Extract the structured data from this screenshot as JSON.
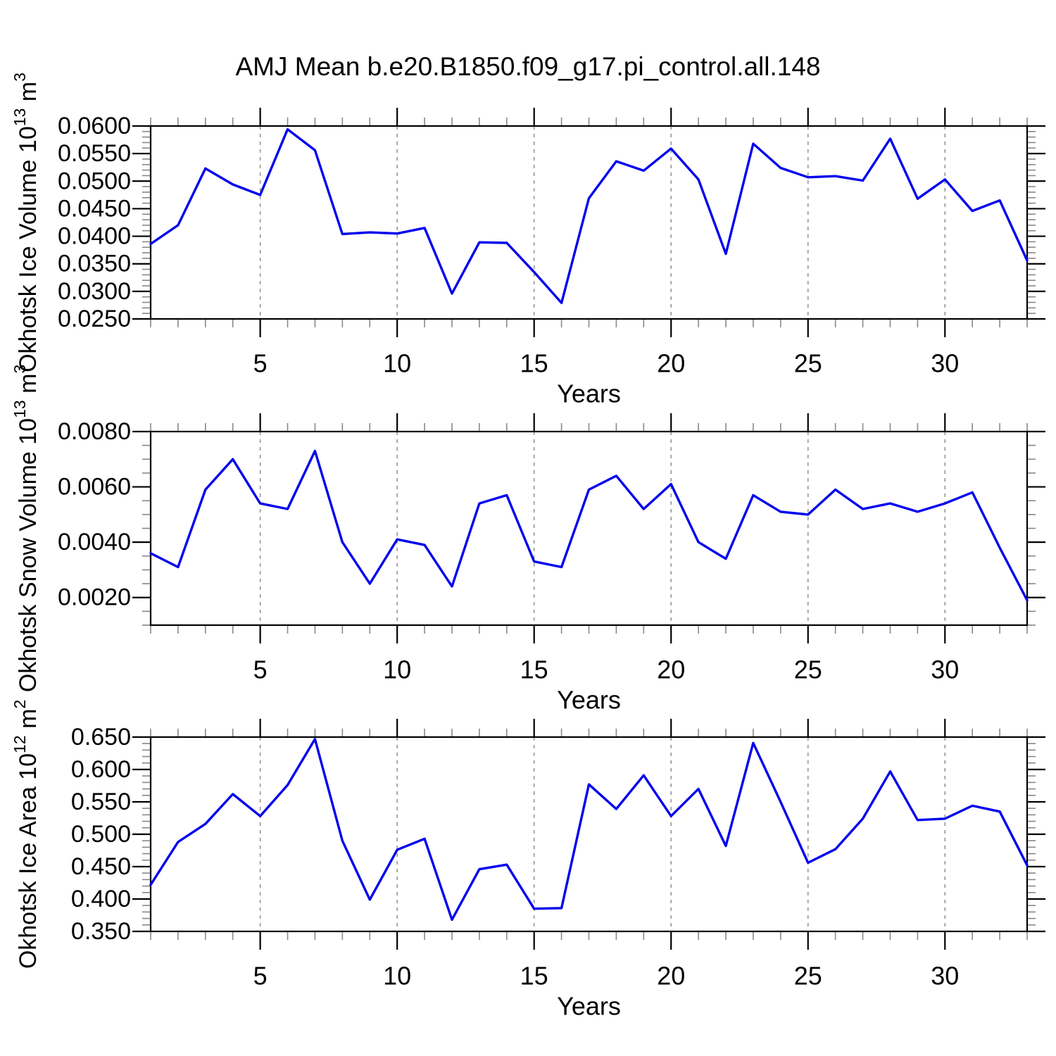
{
  "title": "AMJ Mean b.e20.B1850.f09_g17.pi_control.all.148",
  "colors": {
    "line": "#0000EE",
    "frame": "#000000",
    "major_tick": "#000000",
    "minor_tick": "#888888",
    "grid": "#969696",
    "background": "#ffffff",
    "text": "#000000"
  },
  "chart_data": [
    {
      "type": "line",
      "id": "ice-volume",
      "ylabel_text": "Okhotsk Ice Volume 10^13 m^3",
      "ylabel_parts": [
        {
          "text": "Okhotsk Ice Volume 10",
          "sup": false
        },
        {
          "text": "13",
          "sup": true
        },
        {
          "text": " m",
          "sup": false
        },
        {
          "text": "3",
          "sup": true
        }
      ],
      "xlabel": "Years",
      "x": [
        1,
        2,
        3,
        4,
        5,
        6,
        7,
        8,
        9,
        10,
        11,
        12,
        13,
        14,
        15,
        16,
        17,
        18,
        19,
        20,
        21,
        22,
        23,
        24,
        25,
        26,
        27,
        28,
        29,
        30,
        31,
        32,
        33
      ],
      "values": [
        0.0386,
        0.042,
        0.0523,
        0.0494,
        0.0475,
        0.0594,
        0.0556,
        0.0404,
        0.0407,
        0.0405,
        0.0415,
        0.0296,
        0.0389,
        0.0388,
        0.0335,
        0.0279,
        0.0469,
        0.0536,
        0.0519,
        0.0559,
        0.0503,
        0.0368,
        0.0568,
        0.0524,
        0.0507,
        0.0509,
        0.0501,
        0.0577,
        0.0468,
        0.0503,
        0.0446,
        0.0465,
        0.0356
      ],
      "xlim": [
        1,
        33
      ],
      "ylim": [
        0.025,
        0.06
      ],
      "xticks_major": [
        5,
        10,
        15,
        20,
        25,
        30
      ],
      "xtick_labels": [
        "5",
        "10",
        "15",
        "20",
        "25",
        "30"
      ],
      "xtick_minor_step": 1,
      "ytick_values": [
        0.025,
        0.03,
        0.035,
        0.04,
        0.045,
        0.05,
        0.055,
        0.06
      ],
      "ytick_labels": [
        "0.0250",
        "0.0300",
        "0.0350",
        "0.0400",
        "0.0450",
        "0.0500",
        "0.0550",
        "0.0600"
      ],
      "ytick_minor_step": 0.001,
      "grid_x": [
        5,
        10,
        15,
        20,
        25,
        30
      ],
      "grid_on": true,
      "legend": "none"
    },
    {
      "type": "line",
      "id": "snow-volume",
      "ylabel_text": "Okhotsk Snow Volume 10^13 m^3",
      "ylabel_parts": [
        {
          "text": "Okhotsk Snow Volume 10",
          "sup": false
        },
        {
          "text": "13",
          "sup": true
        },
        {
          "text": " m",
          "sup": false
        },
        {
          "text": "3",
          "sup": true
        }
      ],
      "xlabel": "Years",
      "x": [
        1,
        2,
        3,
        4,
        5,
        6,
        7,
        8,
        9,
        10,
        11,
        12,
        13,
        14,
        15,
        16,
        17,
        18,
        19,
        20,
        21,
        22,
        23,
        24,
        25,
        26,
        27,
        28,
        29,
        30,
        31,
        32,
        33
      ],
      "values": [
        0.0036,
        0.0031,
        0.0059,
        0.007,
        0.0054,
        0.0052,
        0.0073,
        0.004,
        0.0025,
        0.0041,
        0.0039,
        0.0024,
        0.0054,
        0.0057,
        0.0033,
        0.0031,
        0.0059,
        0.0064,
        0.0052,
        0.0061,
        0.004,
        0.0034,
        0.0057,
        0.0051,
        0.005,
        0.0059,
        0.0052,
        0.0054,
        0.0051,
        0.0054,
        0.0058,
        0.0038,
        0.0019
      ],
      "xlim": [
        1,
        33
      ],
      "ylim": [
        0.001,
        0.008
      ],
      "xticks_major": [
        5,
        10,
        15,
        20,
        25,
        30
      ],
      "xtick_labels": [
        "5",
        "10",
        "15",
        "20",
        "25",
        "30"
      ],
      "xtick_minor_step": 1,
      "ytick_values": [
        0.002,
        0.004,
        0.006,
        0.008
      ],
      "ytick_labels": [
        "0.0020",
        "0.0040",
        "0.0060",
        "0.0080"
      ],
      "ytick_minor_step": 0.0005,
      "grid_x": [
        5,
        10,
        15,
        20,
        25,
        30
      ],
      "grid_on": true,
      "legend": "none"
    },
    {
      "type": "line",
      "id": "ice-area",
      "ylabel_text": "Okhotsk Ice Area 10^12 m^2",
      "ylabel_parts": [
        {
          "text": "Okhotsk Ice Area 10",
          "sup": false
        },
        {
          "text": "12",
          "sup": true
        },
        {
          "text": " m",
          "sup": false
        },
        {
          "text": "2",
          "sup": true
        }
      ],
      "xlabel": "Years",
      "x": [
        1,
        2,
        3,
        4,
        5,
        6,
        7,
        8,
        9,
        10,
        11,
        12,
        13,
        14,
        15,
        16,
        17,
        18,
        19,
        20,
        21,
        22,
        23,
        24,
        25,
        26,
        27,
        28,
        29,
        30,
        31,
        32,
        33
      ],
      "values": [
        0.422,
        0.488,
        0.516,
        0.562,
        0.528,
        0.576,
        0.647,
        0.49,
        0.399,
        0.476,
        0.493,
        0.368,
        0.446,
        0.453,
        0.385,
        0.386,
        0.577,
        0.539,
        0.591,
        0.528,
        0.57,
        0.482,
        0.641,
        0.55,
        0.456,
        0.477,
        0.524,
        0.597,
        0.522,
        0.524,
        0.544,
        0.535,
        0.452
      ],
      "xlim": [
        1,
        33
      ],
      "ylim": [
        0.35,
        0.65
      ],
      "xticks_major": [
        5,
        10,
        15,
        20,
        25,
        30
      ],
      "xtick_labels": [
        "5",
        "10",
        "15",
        "20",
        "25",
        "30"
      ],
      "xtick_minor_step": 1,
      "ytick_values": [
        0.35,
        0.4,
        0.45,
        0.5,
        0.55,
        0.6,
        0.65
      ],
      "ytick_labels": [
        "0.350",
        "0.400",
        "0.450",
        "0.500",
        "0.550",
        "0.600",
        "0.650"
      ],
      "ytick_minor_step": 0.01,
      "grid_x": [
        5,
        10,
        15,
        20,
        25,
        30
      ],
      "grid_on": true,
      "legend": "none"
    }
  ]
}
